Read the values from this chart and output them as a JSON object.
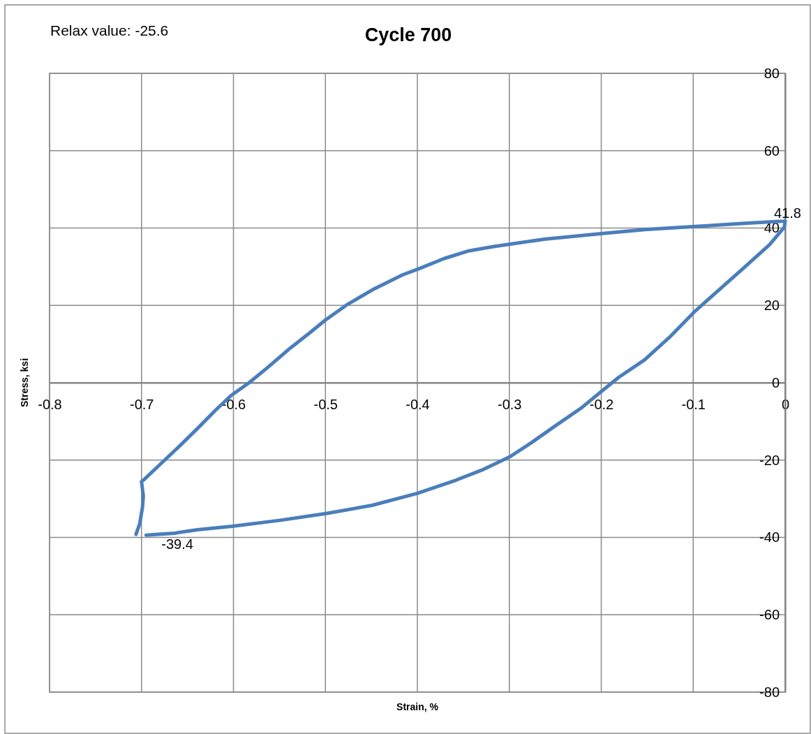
{
  "chart_data": {
    "type": "line",
    "title": "Cycle 700",
    "xlabel": "Strain, %",
    "ylabel": "Stress, ksi",
    "annotations": [
      "Relax value: -25.6",
      {
        "text": "41.8",
        "x": 0,
        "y": 41.8
      },
      {
        "text": "-39.4",
        "x": -0.695,
        "y": -39.4
      }
    ],
    "x": [
      0,
      -0.001,
      -0.017,
      -0.044,
      -0.072,
      -0.098,
      -0.126,
      -0.153,
      -0.181,
      -0.198,
      -0.221,
      -0.249,
      -0.276,
      -0.299,
      -0.33,
      -0.358,
      -0.4,
      -0.449,
      -0.499,
      -0.55,
      -0.601,
      -0.639,
      -0.664,
      -0.695,
      -0.7,
      -0.706,
      -0.702,
      -0.699,
      -0.698,
      -0.7,
      -0.697,
      -0.677,
      -0.657,
      -0.639,
      -0.619,
      -0.603,
      -0.583,
      -0.563,
      -0.538,
      -0.517,
      -0.5,
      -0.477,
      -0.449,
      -0.416,
      -0.398,
      -0.371,
      -0.344,
      -0.317,
      -0.3,
      -0.262,
      -0.198,
      -0.153,
      -0.098,
      -0.044,
      0
    ],
    "series": [
      {
        "color": "#4a7ebb",
        "values": [
          41.8,
          40.2,
          35.7,
          29.9,
          24.0,
          18.5,
          11.7,
          5.9,
          1.4,
          -1.9,
          -6.4,
          -11.0,
          -15.5,
          -19.1,
          -22.6,
          -25.2,
          -28.6,
          -31.7,
          -33.8,
          -35.6,
          -37.1,
          -38.0,
          -38.9,
          -39.4,
          null,
          -39.2,
          -36.5,
          -32.3,
          -29.3,
          -25.6,
          -25.0,
          -20.5,
          -16.0,
          -11.8,
          -7.0,
          -3.4,
          0.0,
          3.9,
          9.0,
          12.9,
          16.2,
          20.1,
          24.0,
          27.9,
          29.5,
          32.1,
          34.1,
          35.2,
          35.8,
          37.1,
          38.6,
          39.6,
          40.4,
          41.2,
          41.8
        ]
      }
    ],
    "xlim": [
      -0.8,
      0
    ],
    "ylim": [
      -80,
      80
    ],
    "xticks": [
      -0.8,
      -0.7,
      -0.6,
      -0.5,
      -0.4,
      -0.3,
      -0.2,
      -0.1,
      0
    ],
    "yticks": [
      -80,
      -60,
      -40,
      -20,
      0,
      20,
      40,
      60,
      80
    ],
    "grid": true,
    "line_style": "solid"
  }
}
